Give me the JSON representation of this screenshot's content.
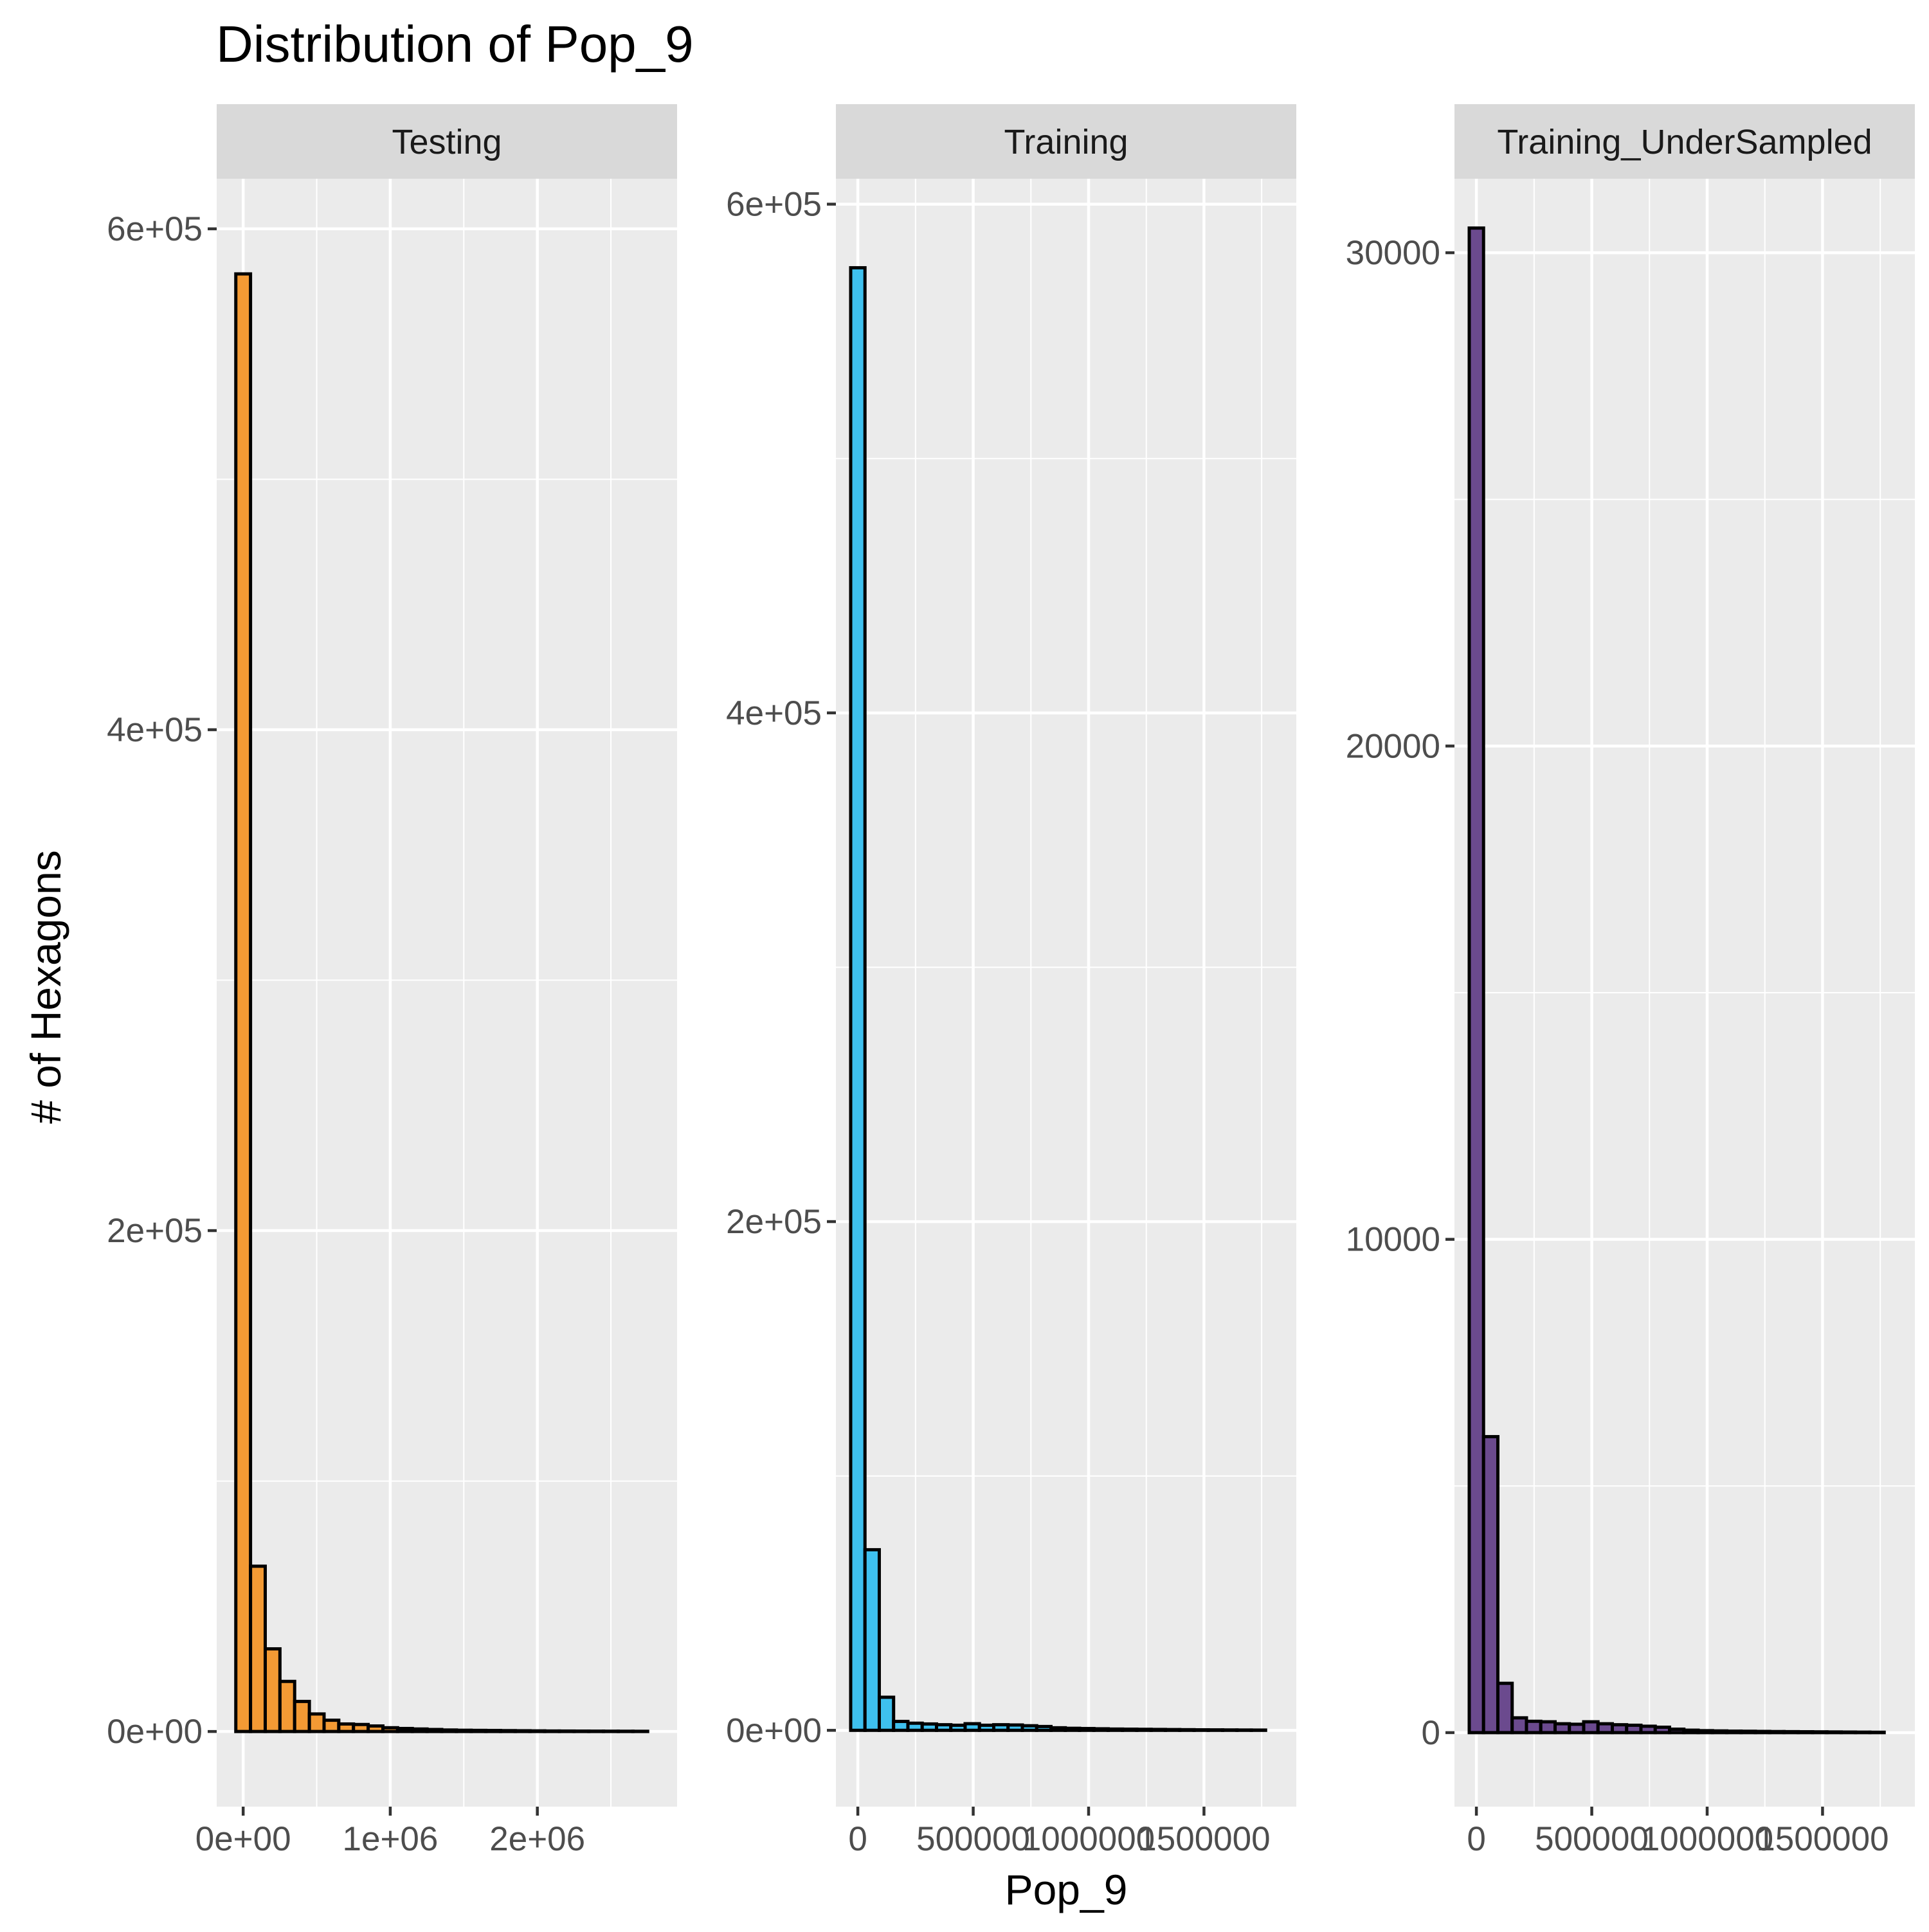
{
  "chart_data": {
    "type": "bar",
    "title": "Distribution of Pop_9",
    "xlabel": "Pop_9",
    "ylabel": "# of Hexagons",
    "grid": true,
    "legend": "none",
    "background": "#ebebeb",
    "strip_background": "#d9d9d9",
    "bar_outline": "#000000",
    "facets": [
      {
        "name": "Testing",
        "color": "#f39a34",
        "xlim": [
          -180000,
          2950000
        ],
        "ylim": [
          -30000,
          620000
        ],
        "x_ticks": [
          0,
          1000000,
          2000000
        ],
        "x_tick_labels": [
          "0e+00",
          "1e+06",
          "2e+06"
        ],
        "y_ticks": [
          0,
          200000,
          400000,
          600000
        ],
        "y_tick_labels": [
          "0e+00",
          "2e+05",
          "4e+05",
          "6e+05"
        ],
        "bin_width": 100000,
        "bin_start": -50000,
        "values": [
          582000,
          66000,
          33000,
          20000,
          12000,
          7000,
          4500,
          3000,
          2800,
          2200,
          1500,
          1200,
          1000,
          800,
          600,
          500,
          450,
          400,
          350,
          300,
          250,
          200,
          180,
          160,
          140,
          120,
          100,
          80
        ]
      },
      {
        "name": "Training",
        "color": "#3ec0ee",
        "xlim": [
          -95000,
          1900000
        ],
        "ylim": [
          -30000,
          610000
        ],
        "x_ticks": [
          0,
          500000,
          1000000,
          1500000
        ],
        "x_tick_labels": [
          "0",
          "500000",
          "1000000",
          "1500000"
        ],
        "y_ticks": [
          0,
          200000,
          400000,
          600000
        ],
        "y_tick_labels": [
          "0e+00",
          "2e+05",
          "4e+05",
          "6e+05"
        ],
        "bin_width": 62000,
        "bin_start": -31000,
        "values": [
          575000,
          71000,
          13000,
          3500,
          2800,
          2500,
          2200,
          2000,
          2600,
          2000,
          2200,
          2100,
          1800,
          1500,
          1000,
          800,
          700,
          600,
          500,
          450,
          400,
          350,
          300,
          250,
          200,
          180,
          150,
          120,
          100
        ]
      },
      {
        "name": "Training_UnderSampled",
        "color": "#6b4a8e",
        "xlim": [
          -95000,
          1900000
        ],
        "ylim": [
          -1500,
          31500
        ],
        "x_ticks": [
          0,
          500000,
          1000000,
          1500000
        ],
        "x_tick_labels": [
          "0",
          "500000",
          "1000000",
          "1500000"
        ],
        "y_ticks": [
          0,
          10000,
          20000,
          30000
        ],
        "y_tick_labels": [
          "0",
          "10000",
          "20000",
          "30000"
        ],
        "bin_width": 62000,
        "bin_start": -31000,
        "values": [
          30500,
          6000,
          1000,
          300,
          230,
          220,
          180,
          170,
          220,
          180,
          160,
          150,
          130,
          110,
          70,
          50,
          40,
          35,
          30,
          28,
          25,
          22,
          20,
          18,
          16,
          14,
          12,
          10,
          8
        ]
      }
    ]
  }
}
